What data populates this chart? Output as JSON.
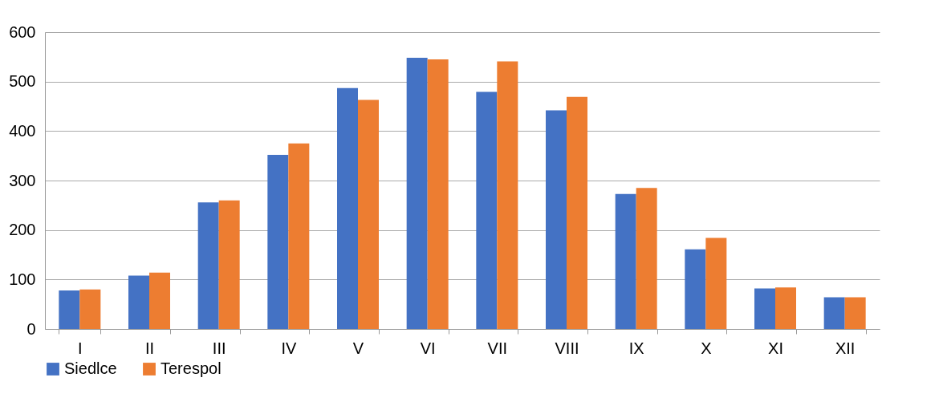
{
  "chart_data": {
    "type": "bar",
    "categories": [
      "I",
      "II",
      "III",
      "IV",
      "V",
      "VI",
      "VII",
      "VIII",
      "IX",
      "X",
      "XI",
      "XII"
    ],
    "series": [
      {
        "name": "Siedlce",
        "color": "#4472c4",
        "values": [
          78,
          108,
          256,
          352,
          487,
          548,
          479,
          442,
          273,
          161,
          82,
          64
        ]
      },
      {
        "name": "Terespol",
        "color": "#ed7d31",
        "values": [
          80,
          114,
          260,
          375,
          463,
          545,
          541,
          469,
          285,
          184,
          84,
          64
        ]
      }
    ],
    "ylim": [
      0,
      600
    ],
    "yticks": [
      0,
      100,
      200,
      300,
      400,
      500,
      600
    ],
    "grid": "y",
    "legend": "bottom"
  }
}
